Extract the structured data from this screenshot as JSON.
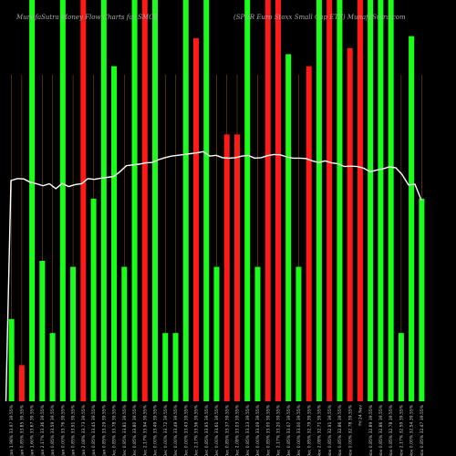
{
  "chart_data": {
    "type": "bar",
    "title_left": "MunafaSutra Money Flow Charts for SMCE",
    "title_right": "(SPDR Euro Stoxx Small Cap ETF) MunafaSutra.com",
    "ylim": [
      0,
      100
    ],
    "colors": {
      "up": "#1aff1a",
      "down": "#ff1a1a",
      "line": "#ffffff",
      "grid": "#8a4a00",
      "background": "#000000"
    },
    "bars": [
      {
        "label": "Mon 15 Jan 1.98% 33.97 39.55%",
        "value": 20.5,
        "dir": "up"
      },
      {
        "label": "Fri 12 Jan 0.85% 33.85 39.55%",
        "value": 9,
        "dir": "down"
      },
      {
        "label": "Thu 11 Jan 1.60% 33.67 39.55%",
        "value": 100,
        "dir": "up"
      },
      {
        "label": "Wed 10 Jan 2.17% 33.36 39.55%",
        "value": 35,
        "dir": "up"
      },
      {
        "label": "Tue 09 Jan 0.85% 33.59 39.55%",
        "value": 17,
        "dir": "up"
      },
      {
        "label": "Mon 08 Jan 0.00% 33.76 39.55%",
        "value": 100,
        "dir": "up"
      },
      {
        "label": "Fri 05 Jan 0.85% 33.91 39.55%",
        "value": 33.5,
        "dir": "up"
      },
      {
        "label": "Thu 04 Jan 2.08% 33.73 39.55%",
        "value": 100,
        "dir": "down"
      },
      {
        "label": "Wed 03 Jan 0.85% 33.45 39.55%",
        "value": 50.5,
        "dir": "up"
      },
      {
        "label": "Tue 02 Jan 0.85% 33.29 39.55%",
        "value": 100,
        "dir": "up"
      },
      {
        "label": "Fri 29 Dec 0.85% 33.78 39.55%",
        "value": 83.5,
        "dir": "up"
      },
      {
        "label": "Thu 28 Dec 0.85% 33.81 39.55%",
        "value": 33.5,
        "dir": "up"
      },
      {
        "label": "Wed 27 Dec 0.85% 33.80 39.55%",
        "value": 100,
        "dir": "up"
      },
      {
        "label": "Tue 26 Dec 2.17% 33.94 39.55%",
        "value": 100,
        "dir": "down"
      },
      {
        "label": "Fri 22 Dec 0.00% 33.49 39.55%",
        "value": 100,
        "dir": "up"
      },
      {
        "label": "Thu 21 Dec 0.00% 33.72 39.55%",
        "value": 17,
        "dir": "up"
      },
      {
        "label": "Wed 20 Dec 0.00% 33.49 39.55%",
        "value": 17,
        "dir": "up"
      },
      {
        "label": "Tue 19 Dec 0.00% 33.43 39.55%",
        "value": 100,
        "dir": "up"
      },
      {
        "label": "Mon 18 Dec 2.17% 33.56 39.55%",
        "value": 90.5,
        "dir": "down"
      },
      {
        "label": "Fri 15 Dec 0.85% 33.95 39.55%",
        "value": 100,
        "dir": "up"
      },
      {
        "label": "Thu 14 Dec 0.00% 33.61 39.55%",
        "value": 33.5,
        "dir": "up"
      },
      {
        "label": "Wed 13 Dec 0.85% 33.37 39.55%",
        "value": 66.5,
        "dir": "down"
      },
      {
        "label": "Tue 12 Dec 2.08% 33.03 39.55%",
        "value": 66.5,
        "dir": "down"
      },
      {
        "label": "Mon 11 Dec 0.85% 33.13 39.55%",
        "value": 100,
        "dir": "up"
      },
      {
        "label": "Fri 08 Dec 0.00% 33.09 39.55%",
        "value": 33.5,
        "dir": "up"
      },
      {
        "label": "Thu 07 Dec 0.85% 33.00 39.55%",
        "value": 100,
        "dir": "down"
      },
      {
        "label": "Wed 06 Dec 2.17% 33.20 39.55%",
        "value": 100,
        "dir": "down"
      },
      {
        "label": "Tue 05 Dec 0.85% 33.07 39.55%",
        "value": 86.5,
        "dir": "up"
      },
      {
        "label": "Mon 04 Dec 0.00% 33.00 39.55%",
        "value": 33.5,
        "dir": "up"
      },
      {
        "label": "Fri 01 Dec 0.85% 32.79 39.55%",
        "value": 83.5,
        "dir": "down"
      },
      {
        "label": "Thu 30 Nov 2.08% 32.71 39.55%",
        "value": 100,
        "dir": "up"
      },
      {
        "label": "Wed 29 Nov 0.85% 32.91 39.55%",
        "value": 100,
        "dir": "down"
      },
      {
        "label": "Tue 28 Nov 0.85% 32.86 39.55%",
        "value": 100,
        "dir": "up"
      },
      {
        "label": "Mon 27 Nov 0.00% 32.78 39.55%",
        "value": 88,
        "dir": "down"
      },
      {
        "label": "Fri 24 Nov",
        "value": 100,
        "dir": "down"
      },
      {
        "label": "Wed 22 Nov 0.85% 32.89 39.55%",
        "value": 100,
        "dir": "up"
      },
      {
        "label": "Tue 21 Nov 0.85% 32.86 39.55%",
        "value": 100,
        "dir": "up"
      },
      {
        "label": "Mon 20 Nov 0.85% 32.78 39.55%",
        "value": 100,
        "dir": "up"
      },
      {
        "label": "Fri 17 Nov 2.17% 32.59 39.55%",
        "value": 17,
        "dir": "up"
      },
      {
        "label": "Thu 16 Nov 0.00% 32.54 39.55%",
        "value": 91,
        "dir": "up"
      },
      {
        "label": "Wed 15 Nov 0.85% 32.47 39.55%",
        "value": 50.5,
        "dir": "up"
      }
    ],
    "line_values": [
      55,
      55.5,
      55.4,
      54.6,
      54.2,
      53.7,
      54.2,
      53,
      54.3,
      53.5,
      54,
      54.2,
      55.5,
      55.3,
      55.6,
      55.8,
      56,
      57.2,
      58.7,
      58.9,
      59.1,
      59.4,
      59.5,
      60.2,
      60.7,
      61.1,
      61.3,
      61.5,
      61.7,
      61.9,
      62.2,
      61.1,
      61.3,
      60.7,
      60.6,
      60.7,
      61.1,
      61.3,
      60.6,
      60.7,
      61.2,
      61.5,
      61.4,
      60.9,
      60.6,
      60.6,
      60.5,
      59.9,
      59.5,
      59.9,
      59.4,
      59.2,
      58.5,
      58.6,
      58.5,
      58.1,
      57.2,
      57.6,
      57.9,
      58.4,
      58.2,
      56.5,
      53.9,
      54.1,
      50.1
    ]
  }
}
